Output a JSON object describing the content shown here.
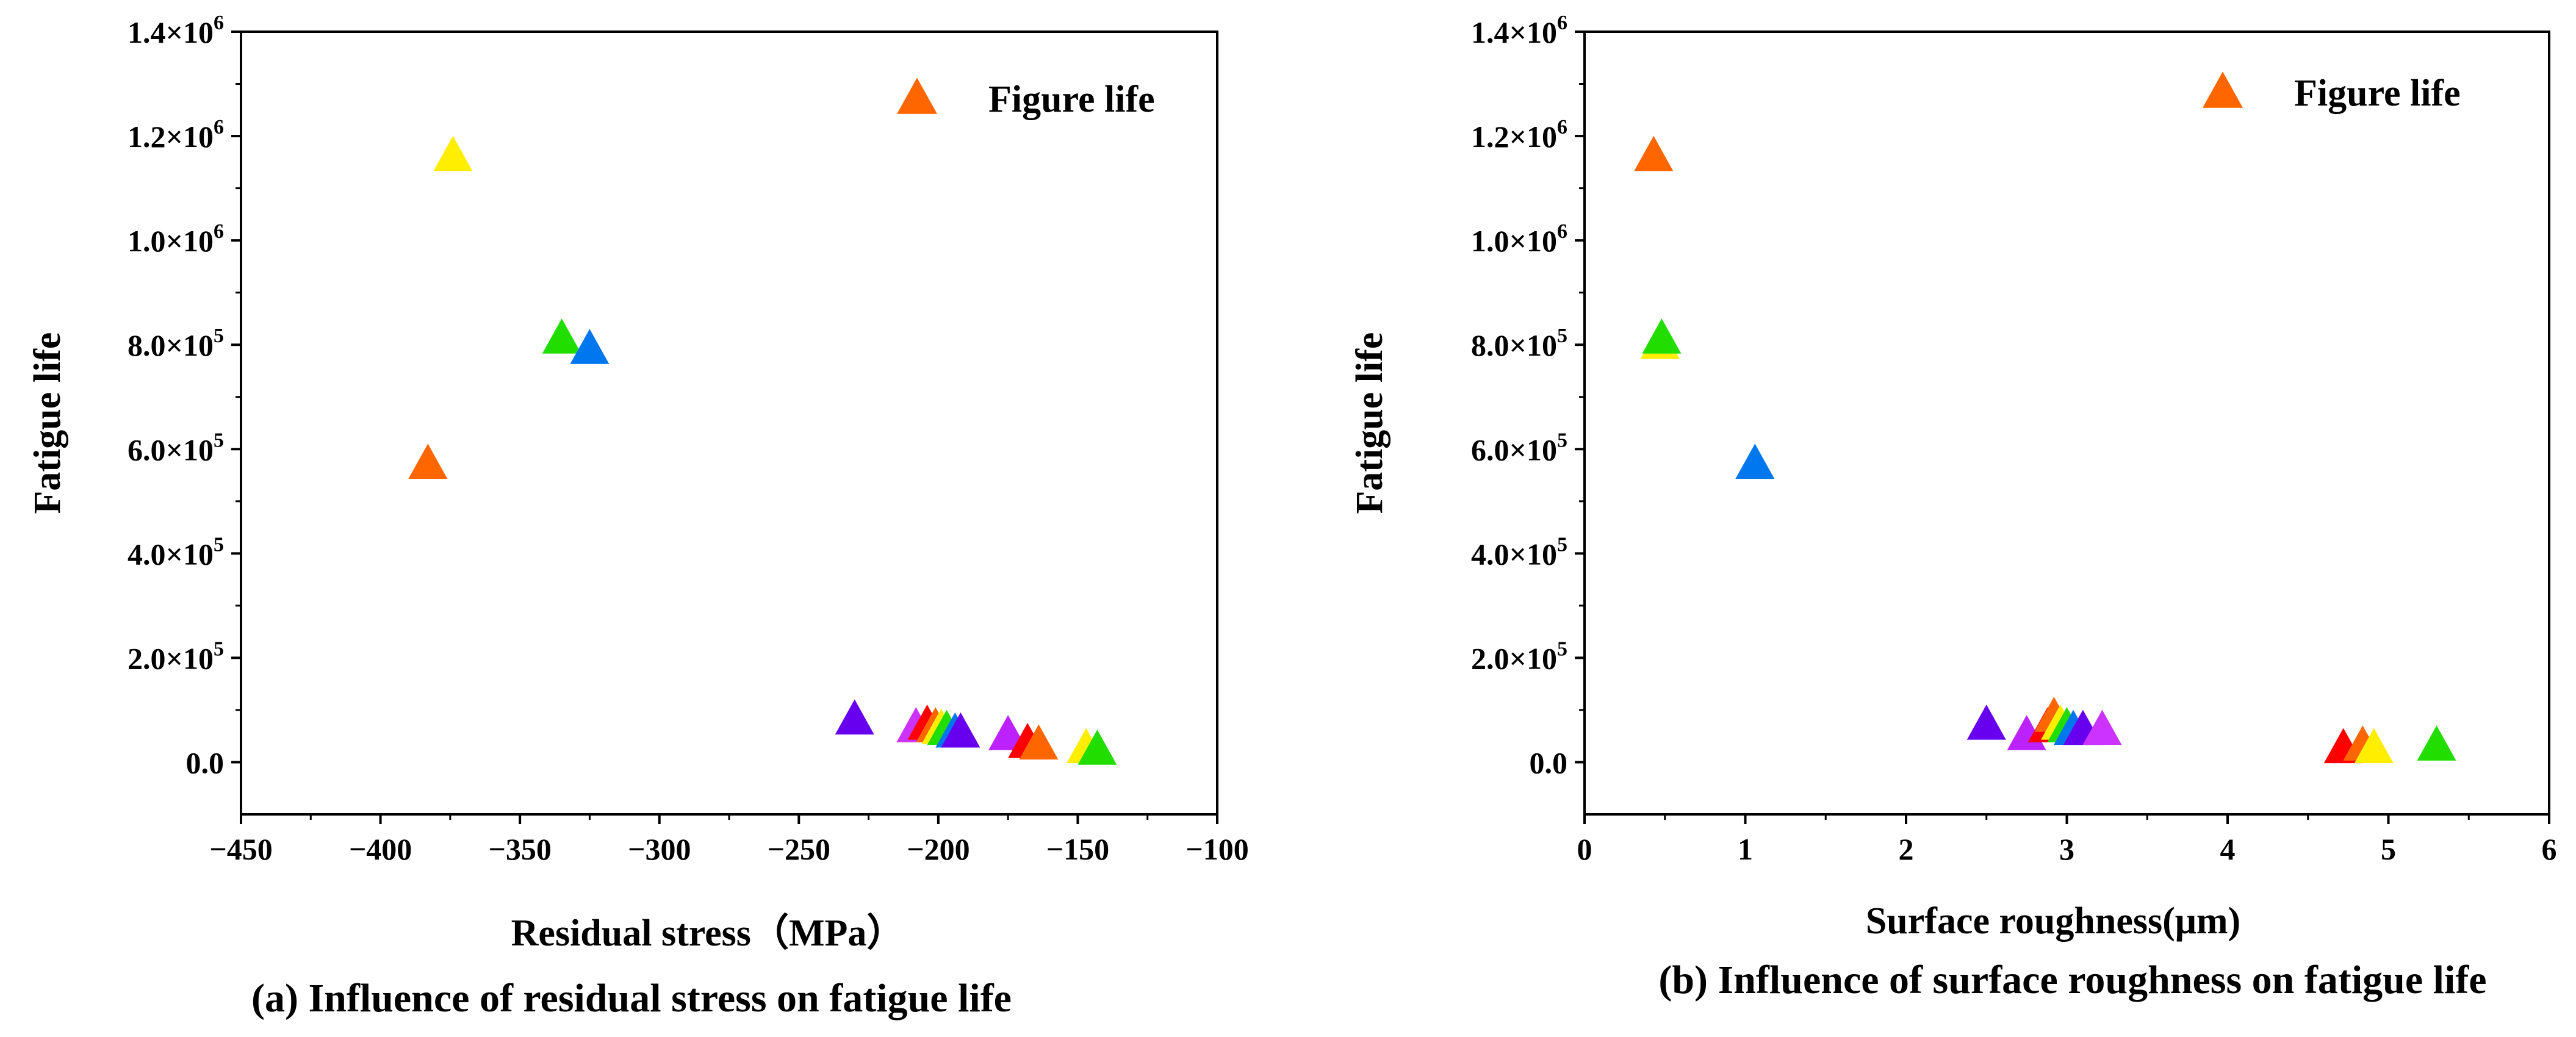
{
  "chart_data": [
    {
      "type": "scatter",
      "caption": "(a) Influence of residual stress on fatigue life",
      "xlabel": "Residual stress（MPa）",
      "ylabel": "Fatigue life",
      "xlim": [
        -450,
        -100
      ],
      "ylim": [
        -100000,
        1400000
      ],
      "xticks": [
        "−450",
        "−400",
        "−350",
        "−300",
        "−250",
        "−200",
        "−150",
        "−100"
      ],
      "yticks": [
        {
          "mantissa": "0.0",
          "exp": ""
        },
        {
          "mantissa": "2.0×10",
          "exp": "5"
        },
        {
          "mantissa": "4.0×10",
          "exp": "5"
        },
        {
          "mantissa": "6.0×10",
          "exp": "5"
        },
        {
          "mantissa": "8.0×10",
          "exp": "5"
        },
        {
          "mantissa": "1.0×10",
          "exp": "6"
        },
        {
          "mantissa": "1.2×10",
          "exp": "6"
        },
        {
          "mantissa": "1.4×10",
          "exp": "6"
        }
      ],
      "legend": {
        "label": "Figure life",
        "color": "#ff6600",
        "position": "top-right"
      },
      "marker": "triangle",
      "points": [
        {
          "x": -383,
          "y": 570000,
          "color": "#ff6600"
        },
        {
          "x": -374,
          "y": 1160000,
          "color": "#ffee00"
        },
        {
          "x": -335,
          "y": 810000,
          "color": "#22dd00"
        },
        {
          "x": -325,
          "y": 790000,
          "color": "#0077ee"
        },
        {
          "x": -230,
          "y": 80000,
          "color": "#6600ee"
        },
        {
          "x": -208,
          "y": 65000,
          "color": "#cc33ff"
        },
        {
          "x": -204,
          "y": 70000,
          "color": "#ff0000"
        },
        {
          "x": -201,
          "y": 65000,
          "color": "#ff6600"
        },
        {
          "x": -199,
          "y": 62000,
          "color": "#ffee00"
        },
        {
          "x": -197,
          "y": 60000,
          "color": "#22dd00"
        },
        {
          "x": -194,
          "y": 55000,
          "color": "#0077ee"
        },
        {
          "x": -192,
          "y": 55000,
          "color": "#6600ee"
        },
        {
          "x": -175,
          "y": 50000,
          "color": "#bb22ff"
        },
        {
          "x": -168,
          "y": 35000,
          "color": "#ff0000"
        },
        {
          "x": -164,
          "y": 32000,
          "color": "#ff6600"
        },
        {
          "x": -147,
          "y": 25000,
          "color": "#ffee00"
        },
        {
          "x": -143,
          "y": 22000,
          "color": "#22dd00"
        }
      ]
    },
    {
      "type": "scatter",
      "caption": "(b) Influence of surface roughness on fatigue life",
      "xlabel": "Surface roughness(μm)",
      "ylabel": "Fatigue life",
      "xlim": [
        0,
        6
      ],
      "ylim": [
        -100000,
        1400000
      ],
      "xticks": [
        "0",
        "1",
        "2",
        "3",
        "4",
        "5",
        "6"
      ],
      "yticks": [
        {
          "mantissa": "0.0",
          "exp": ""
        },
        {
          "mantissa": "2.0×10",
          "exp": "5"
        },
        {
          "mantissa": "4.0×10",
          "exp": "5"
        },
        {
          "mantissa": "6.0×10",
          "exp": "5"
        },
        {
          "mantissa": "8.0×10",
          "exp": "5"
        },
        {
          "mantissa": "1.0×10",
          "exp": "6"
        },
        {
          "mantissa": "1.2×10",
          "exp": "6"
        },
        {
          "mantissa": "1.4×10",
          "exp": "6"
        }
      ],
      "legend": {
        "label": "Figure life",
        "color": "#ff6600",
        "position": "top-right"
      },
      "marker": "triangle",
      "points": [
        {
          "x": 0.43,
          "y": 1160000,
          "color": "#ff6600"
        },
        {
          "x": 0.47,
          "y": 800000,
          "color": "#ffee00"
        },
        {
          "x": 0.48,
          "y": 810000,
          "color": "#22dd00"
        },
        {
          "x": 1.06,
          "y": 570000,
          "color": "#0077ee"
        },
        {
          "x": 2.5,
          "y": 70000,
          "color": "#6600ee"
        },
        {
          "x": 2.75,
          "y": 50000,
          "color": "#bb22ff"
        },
        {
          "x": 2.88,
          "y": 65000,
          "color": "#ff0000"
        },
        {
          "x": 2.92,
          "y": 85000,
          "color": "#ff6600"
        },
        {
          "x": 2.96,
          "y": 70000,
          "color": "#ffee00"
        },
        {
          "x": 3.0,
          "y": 65000,
          "color": "#22dd00"
        },
        {
          "x": 3.04,
          "y": 60000,
          "color": "#0077ee"
        },
        {
          "x": 3.1,
          "y": 60000,
          "color": "#6600ee"
        },
        {
          "x": 3.22,
          "y": 60000,
          "color": "#cc33ff"
        },
        {
          "x": 4.72,
          "y": 25000,
          "color": "#ff0000"
        },
        {
          "x": 4.84,
          "y": 30000,
          "color": "#ff6600"
        },
        {
          "x": 4.91,
          "y": 25000,
          "color": "#ffee00"
        },
        {
          "x": 5.3,
          "y": 30000,
          "color": "#22dd00"
        }
      ]
    }
  ]
}
